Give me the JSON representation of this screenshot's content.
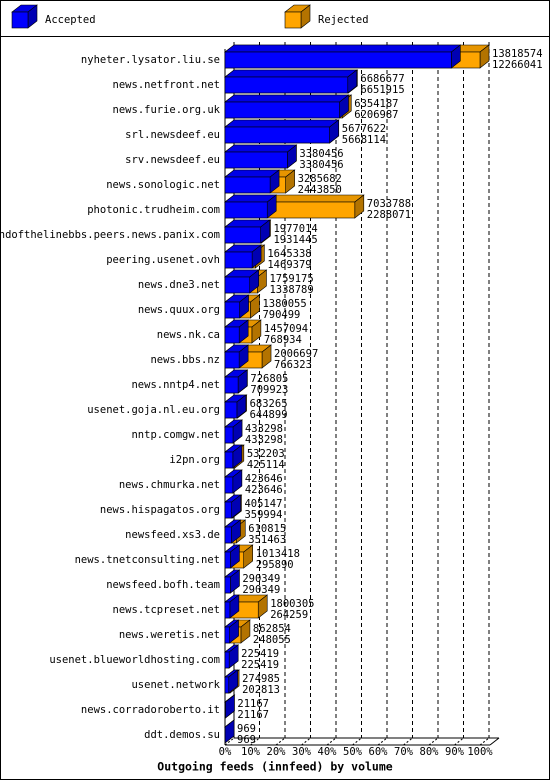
{
  "chart_data": {
    "type": "bar3d",
    "title": "Outgoing feeds (innfeed) by volume",
    "legend": [
      {
        "label": "Accepted",
        "color": "#0000ff"
      },
      {
        "label": "Rejected",
        "color": "#ffa500"
      }
    ],
    "categories": [
      "nyheter.lysator.liu.se",
      "news.netfront.net",
      "news.furie.org.uk",
      "srl.newsdeef.eu",
      "srv.newsdeef.eu",
      "news.sonologic.net",
      "photonic.trudheim.com",
      "endofthelinebbs.peers.news.panix.com",
      "peering.usenet.ovh",
      "news.dne3.net",
      "news.quux.org",
      "news.nk.ca",
      "news.bbs.nz",
      "news.nntp4.net",
      "usenet.goja.nl.eu.org",
      "nntp.comgw.net",
      "i2pn.org",
      "news.chmurka.net",
      "news.hispagatos.org",
      "newsfeed.xs3.de",
      "news.tnetconsulting.net",
      "newsfeed.bofh.team",
      "news.tcpreset.net",
      "news.weretis.net",
      "usenet.blueworldhosting.com",
      "usenet.network",
      "news.corradoroberto.it",
      "ddt.demos.su"
    ],
    "offered": [
      13818574,
      6686677,
      6354187,
      5677622,
      3380456,
      3285682,
      7033788,
      1977014,
      1645338,
      1759175,
      1380055,
      1457094,
      2006697,
      726805,
      683265,
      433298,
      532203,
      423646,
      405147,
      610815,
      1013418,
      290349,
      1800305,
      862854,
      225419,
      274985,
      21167,
      969
    ],
    "accepted": [
      12266041,
      6651915,
      6206987,
      5668114,
      3380456,
      2443850,
      2288071,
      1931445,
      1469379,
      1338789,
      790499,
      768934,
      766323,
      709923,
      644899,
      433298,
      425114,
      423646,
      359994,
      351463,
      295890,
      290349,
      264259,
      248055,
      225419,
      202813,
      21167,
      969
    ],
    "xlim": [
      0,
      13818574
    ],
    "xticks": [
      {
        "value": 0,
        "label": "0%"
      },
      {
        "value": 1381857.4,
        "label": "10%"
      },
      {
        "value": 2763714.8,
        "label": "20%"
      },
      {
        "value": 4145572.2,
        "label": "30%"
      },
      {
        "value": 5527429.6,
        "label": "40%"
      },
      {
        "value": 6909287,
        "label": "50%"
      },
      {
        "value": 8291144.4,
        "label": "60%"
      },
      {
        "value": 9673001.8,
        "label": "70%"
      },
      {
        "value": 11054859.2,
        "label": "80%"
      },
      {
        "value": 12436716.6,
        "label": "90%"
      },
      {
        "value": 13818574,
        "label": "100%"
      }
    ],
    "grid": true
  }
}
